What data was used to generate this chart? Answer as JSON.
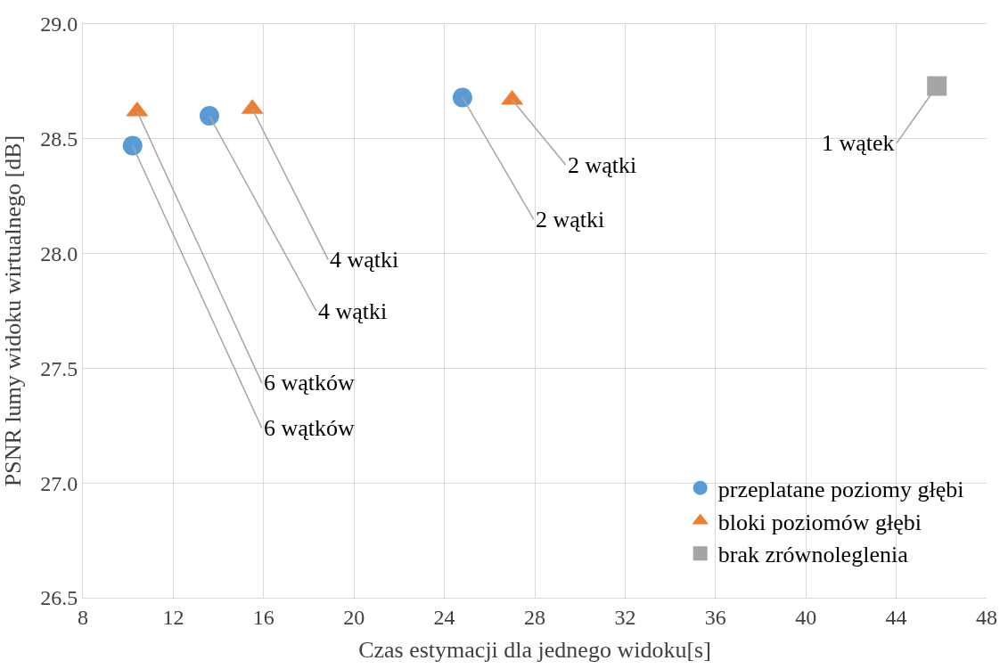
{
  "chart_data": {
    "type": "scatter",
    "xlabel": "Czas estymacji dla jednego widoku[s]",
    "ylabel": "PSNR lumy widoku wirtualnego [dB]",
    "xlim": [
      8,
      48
    ],
    "xticks": [
      8,
      12,
      16,
      20,
      24,
      28,
      32,
      36,
      40,
      44,
      48
    ],
    "ylim": [
      26.5,
      29.0
    ],
    "yticks": [
      {
        "value": 26.5,
        "label": "26.5"
      },
      {
        "value": 27.0,
        "label": "27.0"
      },
      {
        "value": 27.5,
        "label": "27.5"
      },
      {
        "value": 28.0,
        "label": "28.0"
      },
      {
        "value": 28.5,
        "label": "28.5"
      },
      {
        "value": 29.0,
        "label": "29.0"
      }
    ],
    "grid": true,
    "legend": "bottom right",
    "series": [
      {
        "name": "przeplatane poziomy głębi",
        "color": "#5b9bd5",
        "marker": "circle",
        "x": [
          10.2,
          13.6,
          24.8
        ],
        "values": [
          28.47,
          28.6,
          28.68
        ]
      },
      {
        "name": "bloki poziomów głębi",
        "color": "#ed7d31",
        "marker": "triangle",
        "x": [
          10.4,
          15.5,
          27.0
        ],
        "values": [
          28.62,
          28.63,
          28.67
        ]
      },
      {
        "name": "brak zrównoleglenia",
        "color": "#a5a5a5",
        "marker": "square",
        "x": [
          45.8
        ],
        "values": [
          28.73
        ]
      }
    ],
    "annotations": [
      {
        "text": "6 wątków",
        "x": 10.2,
        "y": 28.47
      },
      {
        "text": "6 wątków",
        "x": 10.4,
        "y": 28.62
      },
      {
        "text": "4 wątki",
        "x": 13.6,
        "y": 28.6
      },
      {
        "text": "4 wątki",
        "x": 15.5,
        "y": 28.63
      },
      {
        "text": "2 wątki",
        "x": 24.8,
        "y": 28.68
      },
      {
        "text": "2 wątki",
        "x": 27.0,
        "y": 28.67
      },
      {
        "text": "1 wątek",
        "x": 45.8,
        "y": 28.73
      }
    ]
  }
}
